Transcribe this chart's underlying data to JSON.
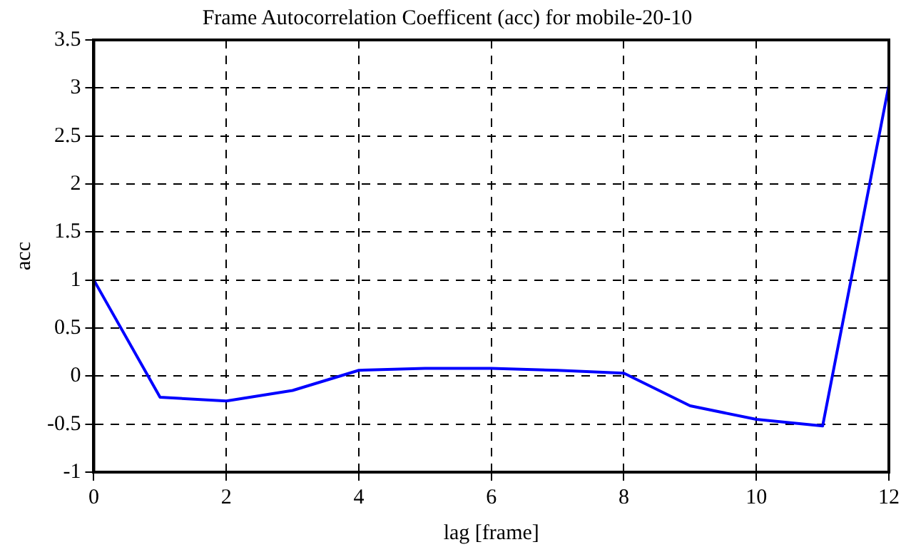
{
  "chart_data": {
    "type": "line",
    "title": "Frame Autocorrelation Coefficent (acc) for mobile-20-10",
    "xlabel": "lag [frame]",
    "ylabel": "acc",
    "x": [
      0,
      1,
      2,
      3,
      4,
      5,
      6,
      7,
      8,
      9,
      10,
      11,
      12
    ],
    "series": [
      {
        "color": "#0000ff",
        "values": [
          1,
          -0.22,
          -0.26,
          -0.15,
          0.06,
          0.08,
          0.08,
          0.06,
          0.03,
          -0.31,
          -0.45,
          -0.52,
          3.03
        ]
      }
    ],
    "xlim": [
      0,
      12
    ],
    "xticks": [
      0,
      2,
      4,
      6,
      8,
      10,
      12
    ],
    "ylim": [
      -1,
      3.5
    ],
    "yticks": [
      -1,
      -0.5,
      0,
      0.5,
      1,
      1.5,
      2,
      2.5,
      3,
      3.5
    ],
    "grid": true,
    "legend": false,
    "marker": "none",
    "line_style": "solid"
  }
}
